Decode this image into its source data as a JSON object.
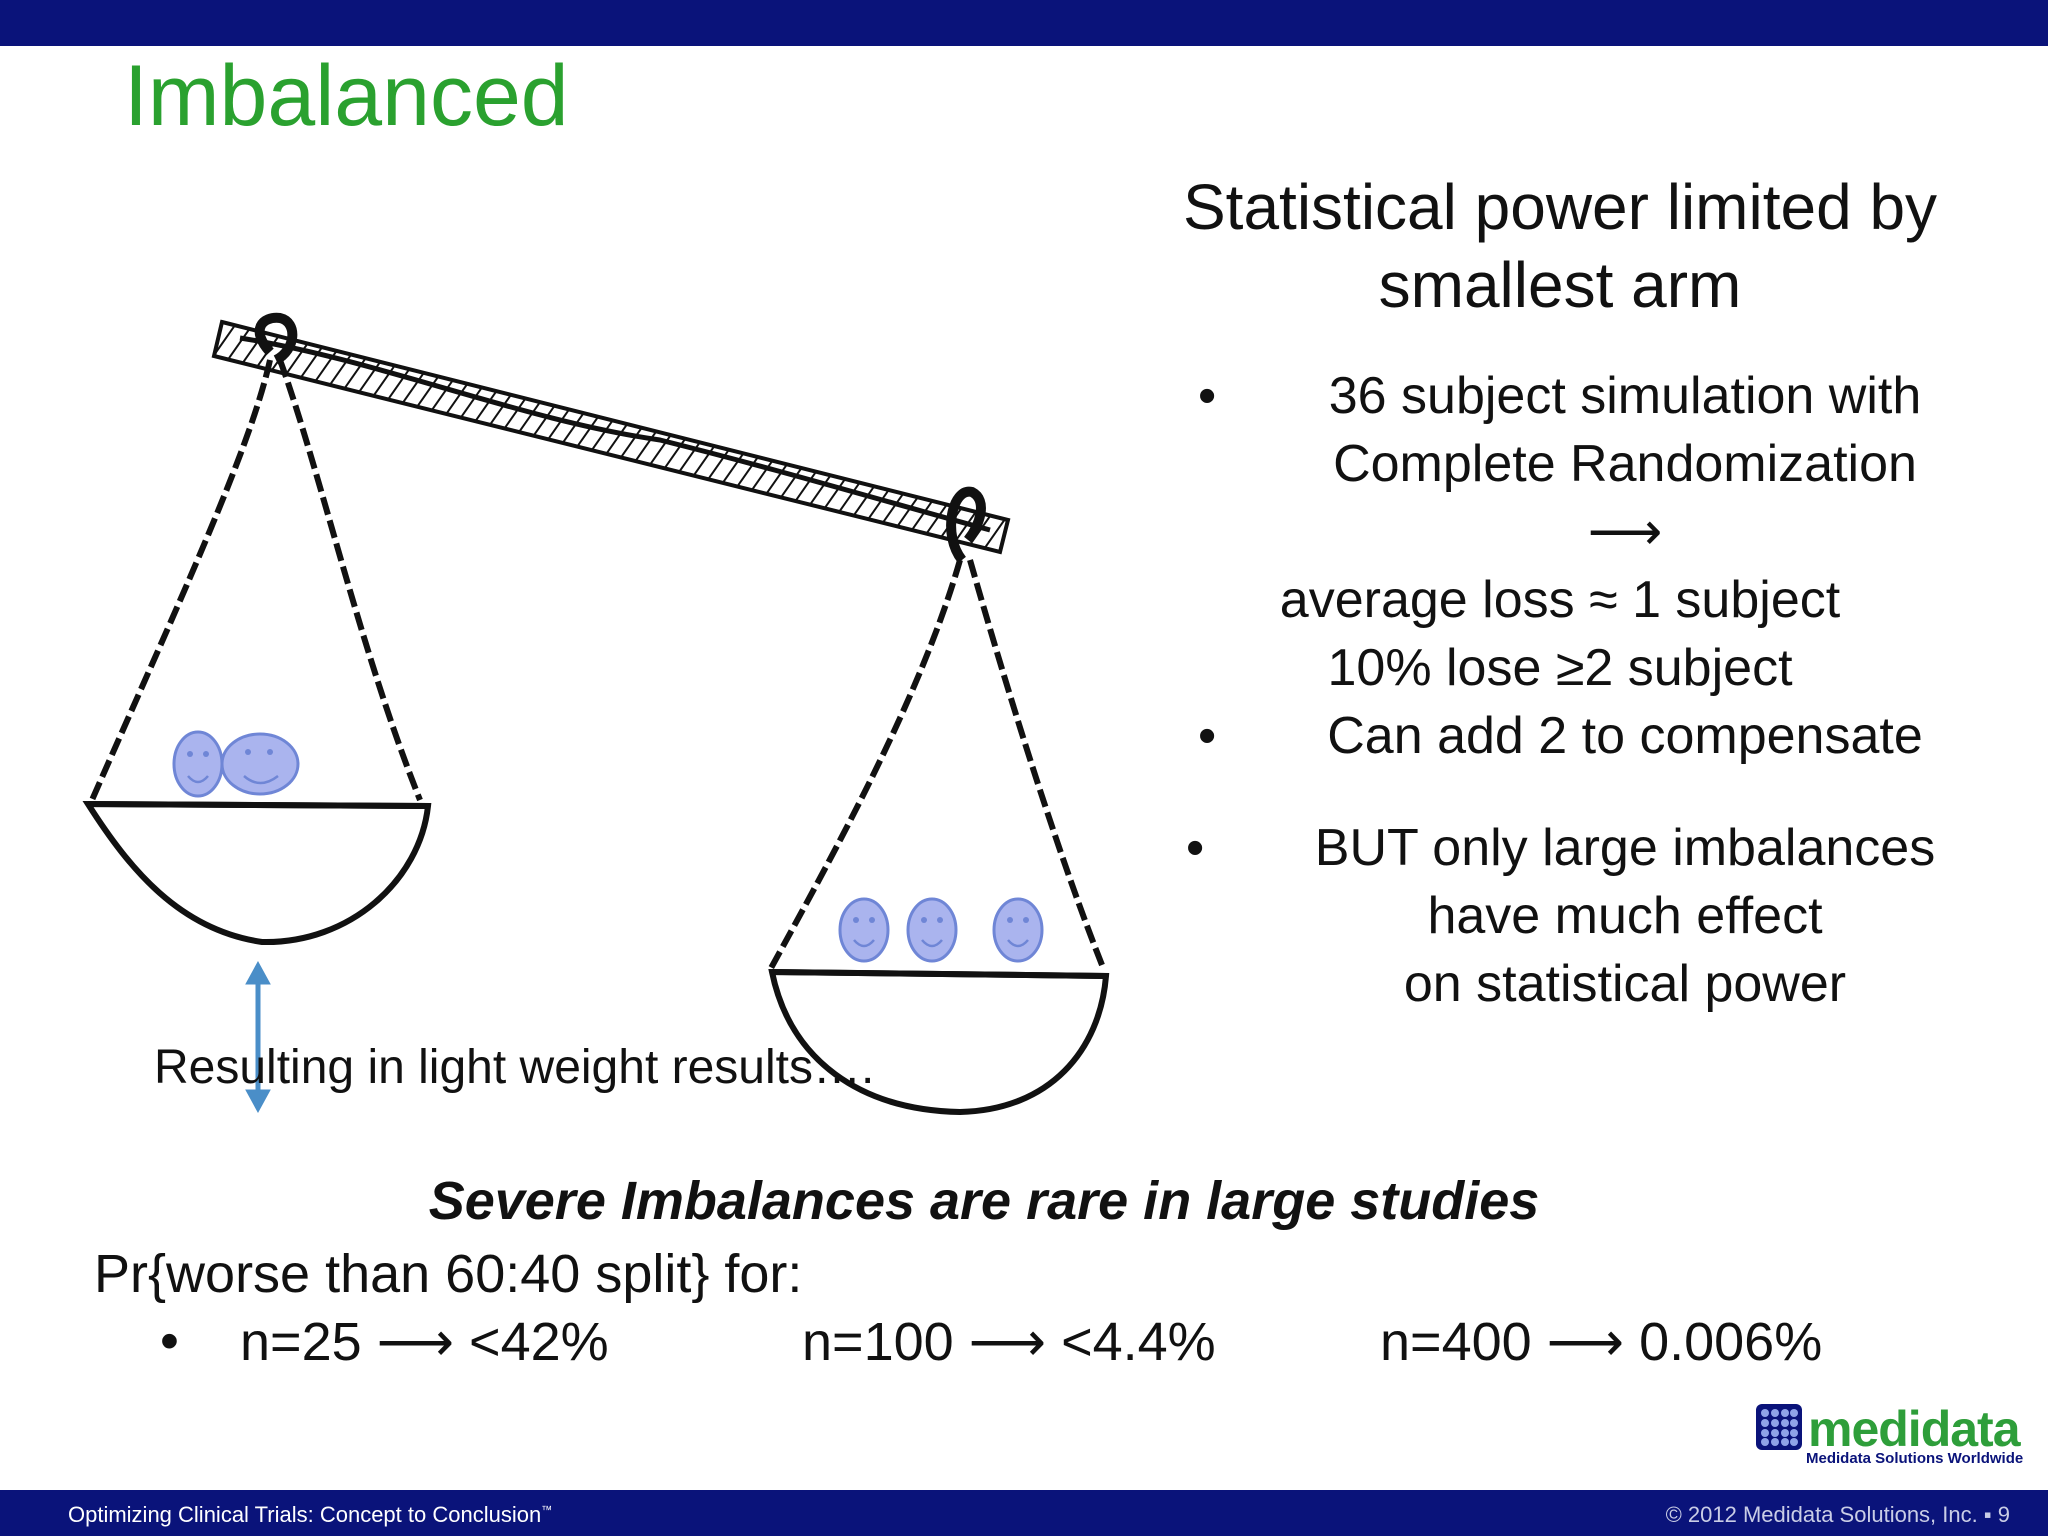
{
  "slide": {
    "title": "Imbalanced",
    "caption": "Resulting in light weight results….",
    "right_heading": [
      "Statistical power limited by",
      "smallest arm"
    ],
    "right_list": {
      "b1_line1": "36 subject simulation with",
      "b1_line2": "Complete Randomization",
      "arrow": "⟶",
      "line_loss": "average loss ≈ 1 subject",
      "line_lose": "10% lose ≥2 subject",
      "b2": "Can add 2 to compensate",
      "b3_line1": "BUT only large imbalances",
      "b3_line2": "have much effect",
      "b3_line3": "on statistical power"
    },
    "bullet": "•",
    "bottom_heading": "Severe Imbalances are rare in large studies",
    "pr_line": "Pr{worse than 60:40 split} for:",
    "n_values": [
      "n=25 ⟶ <42%",
      "n=100 ⟶ <4.4%",
      "n=400 ⟶ 0.006%"
    ]
  },
  "logo": {
    "word": "medidata",
    "tagline": "Medidata Solutions Worldwide",
    "color": "#2e9e3a"
  },
  "footer": {
    "left": "Optimizing Clinical Trials: Concept to Conclusion",
    "tm": "™",
    "right": "© 2012 Medidata Solutions, Inc. ▪ 9"
  },
  "colors": {
    "bar": "#0a137a",
    "title": "#2aa12f",
    "face_fill": "#aab4ee",
    "face_stroke": "#6f86d6",
    "arrow": "#4a8ec8"
  }
}
